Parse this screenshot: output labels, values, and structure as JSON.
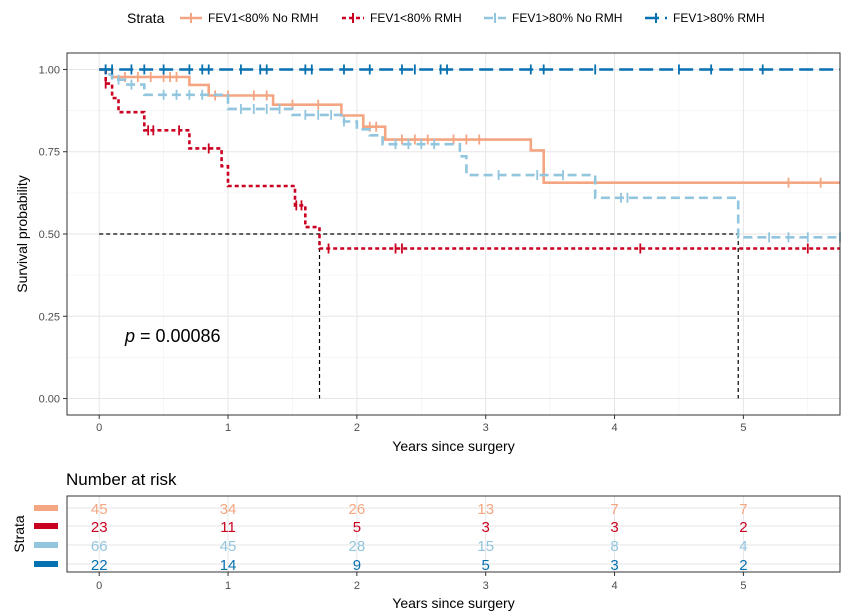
{
  "legend": {
    "title": "Strata",
    "items": [
      {
        "label": "FEV1<80% No RMH",
        "color": "#F4A582",
        "dash": "solid"
      },
      {
        "label": "FEV1<80% RMH",
        "color": "#CA0020",
        "dash": "dotted"
      },
      {
        "label": "FEV1>80% No RMH",
        "color": "#92C5DE",
        "dash": "dashed"
      },
      {
        "label": "FEV1>80% RMH",
        "color": "#0571B0",
        "dash": "longdash"
      }
    ]
  },
  "chart_data": {
    "type": "line",
    "xlabel": "Years since surgery",
    "ylabel": "Survival probability",
    "xlim": [
      -0.25,
      5.75
    ],
    "ylim": [
      -0.05,
      1.05
    ],
    "x_ticks": [
      0,
      1,
      2,
      3,
      4,
      5
    ],
    "x_tick_labels": [
      "0",
      "1",
      "2",
      "3",
      "4",
      "5"
    ],
    "y_ticks": [
      0,
      0.25,
      0.5,
      0.75,
      1
    ],
    "y_tick_labels": [
      "0.00",
      "0.25",
      "0.50",
      "0.75",
      "1.00"
    ],
    "grid": true,
    "annotation": {
      "prefix": "p",
      "text": " = 0.00086",
      "x": 0.2,
      "y": 0.19
    },
    "median_line": {
      "y": 0.5,
      "medians": [
        1.71,
        4.96
      ]
    },
    "series": [
      {
        "name": "FEV1<80% No RMH",
        "color": "#F4A582",
        "steps": [
          [
            0,
            1.0
          ],
          [
            0.1,
            0.977
          ],
          [
            0.7,
            0.953
          ],
          [
            0.85,
            0.921
          ],
          [
            1.35,
            0.893
          ],
          [
            1.88,
            0.86
          ],
          [
            2.05,
            0.826
          ],
          [
            2.22,
            0.787
          ],
          [
            3.35,
            0.754
          ],
          [
            3.45,
            0.656
          ],
          [
            5.75,
            0.656
          ]
        ],
        "censor_x": [
          0.2,
          0.3,
          0.4,
          0.5,
          0.55,
          0.6,
          0.9,
          1.0,
          1.2,
          1.3,
          1.5,
          1.7,
          2.1,
          2.15,
          2.35,
          2.45,
          2.55,
          2.75,
          2.85,
          2.95,
          5.35,
          5.6
        ]
      },
      {
        "name": "FEV1<80% RMH",
        "color": "#CA0020",
        "steps": [
          [
            0,
            1.0
          ],
          [
            0.05,
            0.957
          ],
          [
            0.1,
            0.913
          ],
          [
            0.15,
            0.87
          ],
          [
            0.35,
            0.815
          ],
          [
            0.7,
            0.76
          ],
          [
            0.95,
            0.706
          ],
          [
            1.0,
            0.646
          ],
          [
            1.52,
            0.587
          ],
          [
            1.6,
            0.521
          ],
          [
            1.71,
            0.456
          ],
          [
            5.75,
            0.456
          ]
        ],
        "censor_x": [
          0.05,
          0.38,
          0.42,
          0.62,
          0.85,
          1.53,
          1.57,
          1.78,
          2.3,
          2.35,
          4.2,
          5.5
        ]
      },
      {
        "name": "FEV1>80% No RMH",
        "color": "#92C5DE",
        "steps": [
          [
            0,
            1.0
          ],
          [
            0.06,
            0.985
          ],
          [
            0.1,
            0.969
          ],
          [
            0.2,
            0.954
          ],
          [
            0.35,
            0.923
          ],
          [
            1.0,
            0.88
          ],
          [
            1.5,
            0.862
          ],
          [
            1.9,
            0.842
          ],
          [
            2.0,
            0.818
          ],
          [
            2.1,
            0.8
          ],
          [
            2.2,
            0.773
          ],
          [
            2.8,
            0.736
          ],
          [
            2.85,
            0.679
          ],
          [
            3.85,
            0.61
          ],
          [
            4.95,
            0.61
          ],
          [
            4.96,
            0.49
          ],
          [
            5.75,
            0.49
          ]
        ],
        "censor_x": [
          0.05,
          0.15,
          0.25,
          0.5,
          0.6,
          0.7,
          0.8,
          1.1,
          1.2,
          1.3,
          1.4,
          1.6,
          1.7,
          1.8,
          1.9,
          2.3,
          2.4,
          2.5,
          2.6,
          3.1,
          3.4,
          3.6,
          4.05,
          4.1,
          5.2,
          5.35,
          5.5,
          5.75
        ]
      },
      {
        "name": "FEV1>80% RMH",
        "color": "#0571B0",
        "steps": [
          [
            0,
            1.0
          ],
          [
            5.75,
            1.0
          ]
        ],
        "censor_x": [
          0.05,
          0.1,
          0.25,
          0.35,
          0.5,
          0.7,
          0.8,
          0.85,
          1.1,
          1.25,
          1.3,
          1.6,
          1.65,
          1.9,
          2.1,
          2.35,
          2.45,
          2.65,
          2.7,
          3.35,
          3.45,
          3.85,
          4.5,
          4.75,
          5.15
        ]
      }
    ]
  },
  "risk_table": {
    "title": "Number at risk",
    "ylabel": "Strata",
    "xlabel": "Years since surgery",
    "times": [
      0,
      1,
      2,
      3,
      4,
      5
    ],
    "rows": [
      {
        "color": "#F4A582",
        "values": [
          "45",
          "34",
          "26",
          "13",
          "7",
          "7"
        ]
      },
      {
        "color": "#CA0020",
        "values": [
          "23",
          "11",
          "5",
          "3",
          "3",
          "2"
        ]
      },
      {
        "color": "#92C5DE",
        "values": [
          "66",
          "45",
          "28",
          "15",
          "8",
          "4"
        ]
      },
      {
        "color": "#0571B0",
        "values": [
          "22",
          "14",
          "9",
          "5",
          "3",
          "2"
        ]
      }
    ]
  }
}
